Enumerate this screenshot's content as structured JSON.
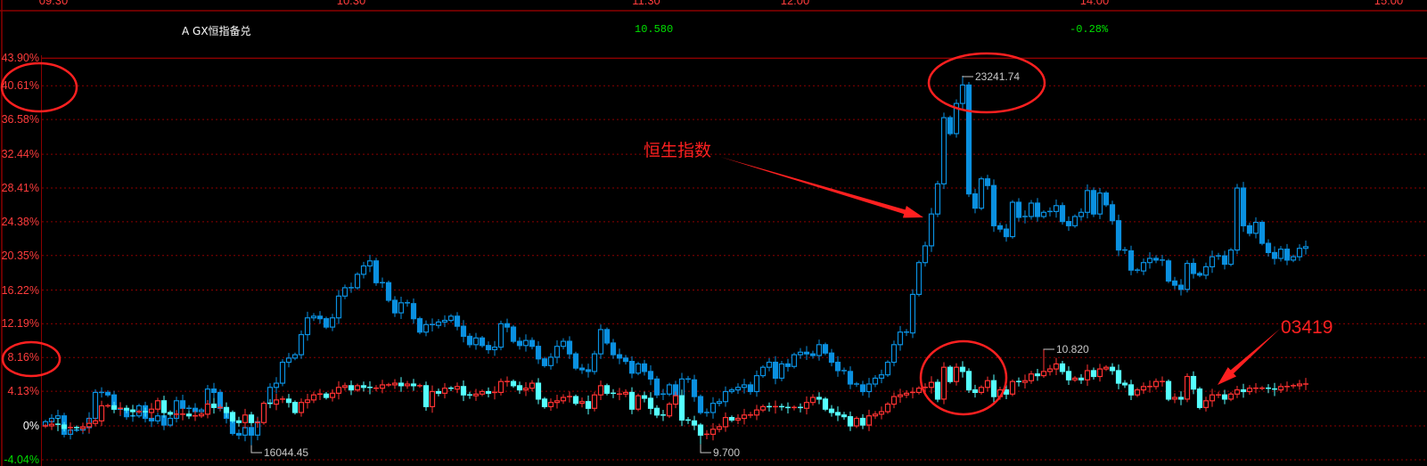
{
  "header": {
    "instrument": "A GX恒指备兑",
    "price": "10.580",
    "change": "-0.28%"
  },
  "time_axis": [
    "09:30",
    "10:30",
    "11:30",
    "12:00",
    "14:00",
    "15:00"
  ],
  "annotations": {
    "hsi_label": "恒生指数",
    "stock_label": "03419"
  },
  "colors": {
    "background": "#000000",
    "grid": "#8b0000",
    "axis_text": "#ff3c3c",
    "zero_text": "#ffffff",
    "negative_text": "#00e000",
    "index_candle": "#0a90e0",
    "stock_up": "#ff3232",
    "stock_down": "#55ffff",
    "annotation": "#ff2020"
  },
  "chart_data": {
    "type": "candlestick",
    "y_unit": "%",
    "y_ticks": [
      "43.90%",
      "40.61%",
      "36.58%",
      "32.44%",
      "28.41%",
      "24.38%",
      "20.35%",
      "16.22%",
      "12.19%",
      "8.16%",
      "4.13%",
      "0%",
      "-4.04%"
    ],
    "y_tick_values": [
      43.9,
      40.61,
      36.58,
      32.44,
      28.41,
      24.38,
      20.35,
      16.22,
      12.19,
      8.16,
      4.13,
      0,
      -4.04
    ],
    "ylim": [
      -4.04,
      43.9
    ],
    "grid": true,
    "series": [
      {
        "style": "hollow-up / filled-down, blue",
        "close_pct": [
          0.5,
          0.9,
          1.2,
          -1.0,
          -0.5,
          -0.5,
          -0.2,
          0.9,
          4.0,
          4.0,
          3.7,
          2.0,
          1.9,
          1.1,
          1.2,
          2.4,
          0.9,
          0.6,
          1.2,
          0.1,
          0.9,
          3.0,
          2.1,
          2.1,
          1.7,
          1.9,
          4.4,
          4.0,
          2.1,
          0.9,
          -0.9,
          -1.1,
          -0.2,
          -1.1,
          0.5,
          2.7,
          4.6,
          5.1,
          7.6,
          8.1,
          8.5,
          10.9,
          12.9,
          13.1,
          12.8,
          11.8,
          12.9,
          15.5,
          16.5,
          16.5,
          18.1,
          19.1,
          19.7,
          17.1,
          17.1,
          15.0,
          13.5,
          14.7,
          14.6,
          12.8,
          11.2,
          12.1,
          12.0,
          12.4,
          12.6,
          13.1,
          11.9,
          10.7,
          9.7,
          10.5,
          9.6,
          9.1,
          9.4,
          12.2,
          11.8,
          10.1,
          9.6,
          10.2,
          9.5,
          8.0,
          7.2,
          8.2,
          9.5,
          10.1,
          8.6,
          6.9,
          6.7,
          6.5,
          8.6,
          11.5,
          9.9,
          8.5,
          8.1,
          7.7,
          6.3,
          7.4,
          6.5,
          5.6,
          3.7,
          3.8,
          4.9,
          3.5,
          5.6,
          5.5,
          3.5,
          1.6,
          1.6,
          2.7,
          2.9,
          4.1,
          4.3,
          4.6,
          4.9,
          4.1,
          6.0,
          7.0,
          7.6,
          5.7,
          7.4,
          7.1,
          8.5,
          8.8,
          8.6,
          8.4,
          9.7,
          8.7,
          7.6,
          6.6,
          6.5,
          5.0,
          4.9,
          4.1,
          5.0,
          5.7,
          6.1,
          7.6,
          9.7,
          11.2,
          11.1,
          15.7,
          19.5,
          21.5,
          25.3,
          28.9,
          36.8,
          34.9,
          38.5,
          40.7,
          27.7,
          26.0,
          29.5,
          28.7,
          23.9,
          23.5,
          22.6,
          26.7,
          24.9,
          25.0,
          26.6,
          25.0,
          25.5,
          25.6,
          26.3,
          24.4,
          23.9,
          25.0,
          25.5,
          28.1,
          25.3,
          27.8,
          26.4,
          24.5,
          21.0,
          20.9,
          18.6,
          18.5,
          19.5,
          20.0,
          19.8,
          19.7,
          17.3,
          16.8,
          16.3,
          19.4,
          18.2,
          18.0,
          19.0,
          20.2,
          20.3,
          19.3,
          21.0,
          28.4,
          23.9,
          23.0,
          24.3,
          21.8,
          20.7,
          20.0,
          21.1,
          19.8,
          20.2,
          21.2,
          21.4
        ],
        "max_mark": {
          "index": 147,
          "pct": 41.8,
          "label": "23241.74"
        },
        "min_mark": {
          "index": 33,
          "pct": -2.3,
          "label": "16044.45"
        }
      },
      {
        "style": "hollow-up red / filled-down cyan",
        "close_pct": [
          0.0,
          0.2,
          0.1,
          -0.3,
          -0.2,
          -0.3,
          -0.1,
          0.3,
          0.6,
          2.4,
          2.4,
          2.0,
          2.1,
          1.9,
          1.7,
          1.7,
          1.6,
          2.0,
          3.0,
          1.6,
          1.4,
          1.4,
          1.4,
          1.2,
          1.2,
          1.4,
          2.6,
          2.2,
          2.2,
          1.6,
          0.6,
          0.4,
          1.3,
          0.4,
          0.4,
          2.7,
          2.6,
          3.1,
          3.2,
          2.8,
          1.6,
          2.8,
          3.1,
          3.7,
          3.8,
          3.4,
          3.9,
          4.6,
          4.8,
          4.3,
          4.8,
          4.6,
          4.5,
          4.5,
          4.9,
          4.9,
          5.1,
          4.8,
          5.0,
          4.8,
          4.8,
          2.3,
          4.1,
          3.9,
          4.5,
          4.4,
          4.7,
          3.7,
          3.6,
          3.8,
          4.1,
          3.9,
          4.0,
          5.3,
          5.3,
          4.8,
          4.3,
          4.5,
          5.1,
          3.2,
          2.3,
          2.8,
          3.0,
          3.4,
          3.5,
          2.7,
          2.9,
          2.1,
          3.7,
          4.8,
          3.9,
          3.8,
          3.8,
          4.0,
          2.0,
          3.6,
          3.3,
          2.1,
          1.3,
          1.2,
          2.6,
          3.6,
          0.7,
          0.6,
          0.1,
          -1.1,
          -1.0,
          -0.4,
          -0.1,
          1.0,
          0.7,
          0.9,
          1.3,
          1.3,
          1.9,
          2.3,
          2.2,
          2.3,
          2.2,
          2.1,
          2.2,
          2.1,
          2.8,
          3.4,
          3.2,
          2.0,
          1.6,
          1.3,
          1.1,
          0.0,
          0.9,
          0.1,
          1.2,
          1.4,
          1.7,
          2.6,
          3.5,
          3.7,
          3.9,
          4.0,
          4.5,
          4.6,
          5.2,
          3.2,
          7.0,
          5.3,
          7.0,
          6.5,
          4.3,
          4.0,
          4.6,
          5.4,
          3.5,
          4.3,
          3.8,
          5.3,
          5.2,
          5.4,
          6.2,
          6.0,
          6.5,
          6.8,
          7.4,
          6.5,
          5.5,
          5.7,
          5.5,
          6.6,
          5.9,
          6.8,
          7.0,
          6.6,
          5.1,
          4.9,
          3.7,
          4.3,
          4.7,
          4.7,
          5.3,
          5.3,
          3.2,
          3.4,
          3.2,
          5.9,
          4.4,
          2.2,
          3.0,
          3.7,
          3.7,
          3.2,
          3.8,
          4.3,
          4.1,
          4.5,
          4.5,
          4.5,
          4.4,
          4.3,
          4.7,
          4.7,
          4.8,
          5.0,
          5.0
        ],
        "max_mark": {
          "index": 160,
          "pct": 9.1,
          "label": "10.820"
        },
        "min_mark": {
          "index": 105,
          "pct": -2.2,
          "label": "9.700"
        }
      }
    ]
  }
}
